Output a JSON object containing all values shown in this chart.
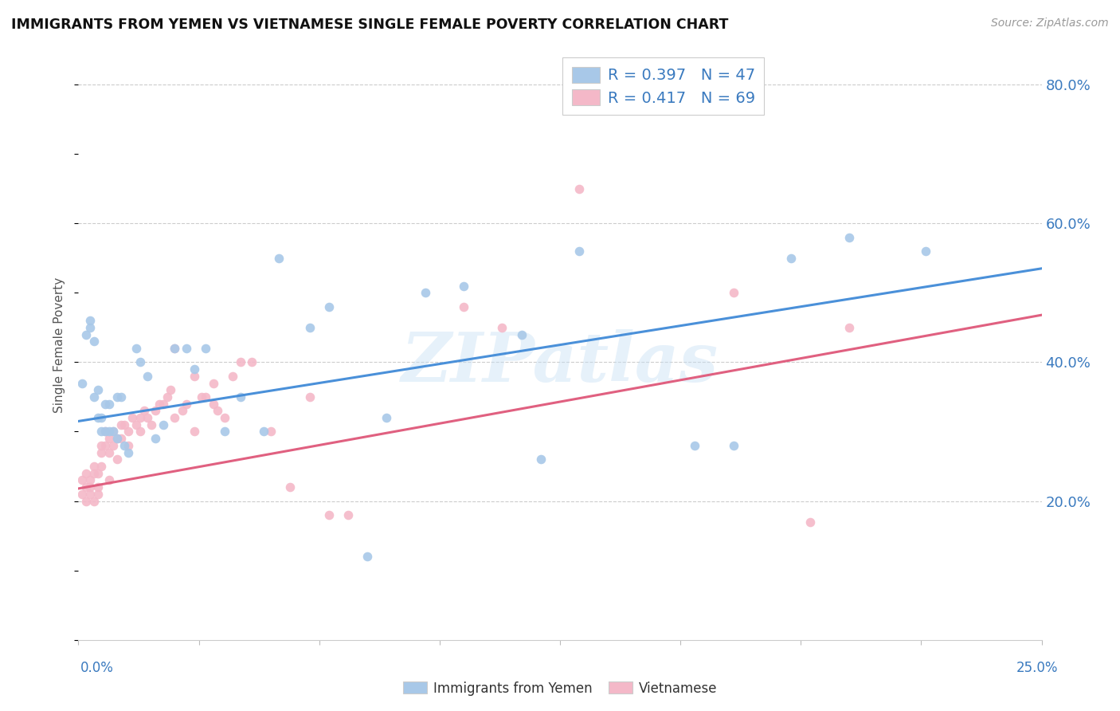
{
  "title": "IMMIGRANTS FROM YEMEN VS VIETNAMESE SINGLE FEMALE POVERTY CORRELATION CHART",
  "source": "Source: ZipAtlas.com",
  "ylabel": "Single Female Poverty",
  "right_yticks": [
    "20.0%",
    "40.0%",
    "60.0%",
    "80.0%"
  ],
  "right_ytick_vals": [
    0.2,
    0.4,
    0.6,
    0.8
  ],
  "xlim": [
    0.0,
    0.25
  ],
  "ylim": [
    0.0,
    0.85
  ],
  "legend1_r": "0.397",
  "legend1_n": "47",
  "legend2_r": "0.417",
  "legend2_n": "69",
  "color_blue": "#a8c8e8",
  "color_pink": "#f4b8c8",
  "line_color_blue": "#4a90d9",
  "line_color_pink": "#e06080",
  "watermark": "ZIPatlas",
  "marker_size": 70,
  "yemen_x": [
    0.001,
    0.002,
    0.003,
    0.003,
    0.004,
    0.004,
    0.005,
    0.005,
    0.006,
    0.006,
    0.007,
    0.007,
    0.008,
    0.008,
    0.009,
    0.01,
    0.01,
    0.011,
    0.012,
    0.013,
    0.015,
    0.016,
    0.018,
    0.02,
    0.022,
    0.025,
    0.028,
    0.03,
    0.033,
    0.038,
    0.042,
    0.048,
    0.052,
    0.06,
    0.065,
    0.075,
    0.08,
    0.09,
    0.1,
    0.115,
    0.12,
    0.13,
    0.16,
    0.17,
    0.185,
    0.2,
    0.22
  ],
  "yemen_y": [
    0.37,
    0.44,
    0.46,
    0.45,
    0.43,
    0.35,
    0.32,
    0.36,
    0.32,
    0.3,
    0.34,
    0.3,
    0.34,
    0.3,
    0.3,
    0.35,
    0.29,
    0.35,
    0.28,
    0.27,
    0.42,
    0.4,
    0.38,
    0.29,
    0.31,
    0.42,
    0.42,
    0.39,
    0.42,
    0.3,
    0.35,
    0.3,
    0.55,
    0.45,
    0.48,
    0.12,
    0.32,
    0.5,
    0.51,
    0.44,
    0.26,
    0.56,
    0.28,
    0.28,
    0.55,
    0.58,
    0.56
  ],
  "viet_x": [
    0.001,
    0.001,
    0.002,
    0.002,
    0.002,
    0.003,
    0.003,
    0.003,
    0.004,
    0.004,
    0.004,
    0.005,
    0.005,
    0.005,
    0.006,
    0.006,
    0.006,
    0.007,
    0.007,
    0.008,
    0.008,
    0.008,
    0.009,
    0.009,
    0.01,
    0.01,
    0.011,
    0.011,
    0.012,
    0.013,
    0.013,
    0.014,
    0.015,
    0.016,
    0.016,
    0.017,
    0.018,
    0.019,
    0.02,
    0.021,
    0.022,
    0.023,
    0.024,
    0.025,
    0.025,
    0.027,
    0.028,
    0.03,
    0.03,
    0.032,
    0.033,
    0.035,
    0.035,
    0.036,
    0.038,
    0.04,
    0.042,
    0.045,
    0.05,
    0.055,
    0.06,
    0.065,
    0.07,
    0.1,
    0.11,
    0.13,
    0.17,
    0.19,
    0.2
  ],
  "viet_y": [
    0.23,
    0.21,
    0.24,
    0.22,
    0.2,
    0.23,
    0.22,
    0.21,
    0.25,
    0.24,
    0.2,
    0.24,
    0.22,
    0.21,
    0.28,
    0.27,
    0.25,
    0.28,
    0.3,
    0.29,
    0.27,
    0.23,
    0.3,
    0.28,
    0.29,
    0.26,
    0.31,
    0.29,
    0.31,
    0.3,
    0.28,
    0.32,
    0.31,
    0.32,
    0.3,
    0.33,
    0.32,
    0.31,
    0.33,
    0.34,
    0.34,
    0.35,
    0.36,
    0.42,
    0.32,
    0.33,
    0.34,
    0.38,
    0.3,
    0.35,
    0.35,
    0.37,
    0.34,
    0.33,
    0.32,
    0.38,
    0.4,
    0.4,
    0.3,
    0.22,
    0.35,
    0.18,
    0.18,
    0.48,
    0.45,
    0.65,
    0.5,
    0.17,
    0.45
  ]
}
